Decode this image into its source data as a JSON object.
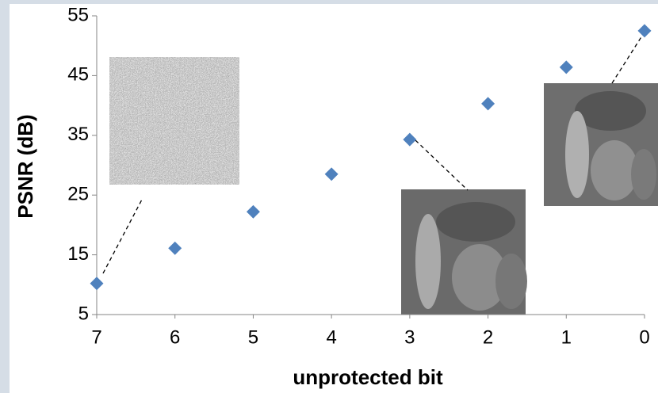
{
  "chart_data": {
    "type": "scatter",
    "x_label": "unprotected bit",
    "y_label": "PSNR (dB)",
    "categories": [
      "7",
      "6",
      "5",
      "4",
      "3",
      "2",
      "1",
      "0"
    ],
    "values": [
      10.2,
      16.1,
      22.2,
      28.5,
      34.3,
      40.3,
      46.4,
      52.5
    ],
    "color": "#4f81bd",
    "ylim": [
      5,
      55
    ],
    "yticks": [
      5,
      15,
      25,
      35,
      45,
      55
    ],
    "grid": false
  }
}
